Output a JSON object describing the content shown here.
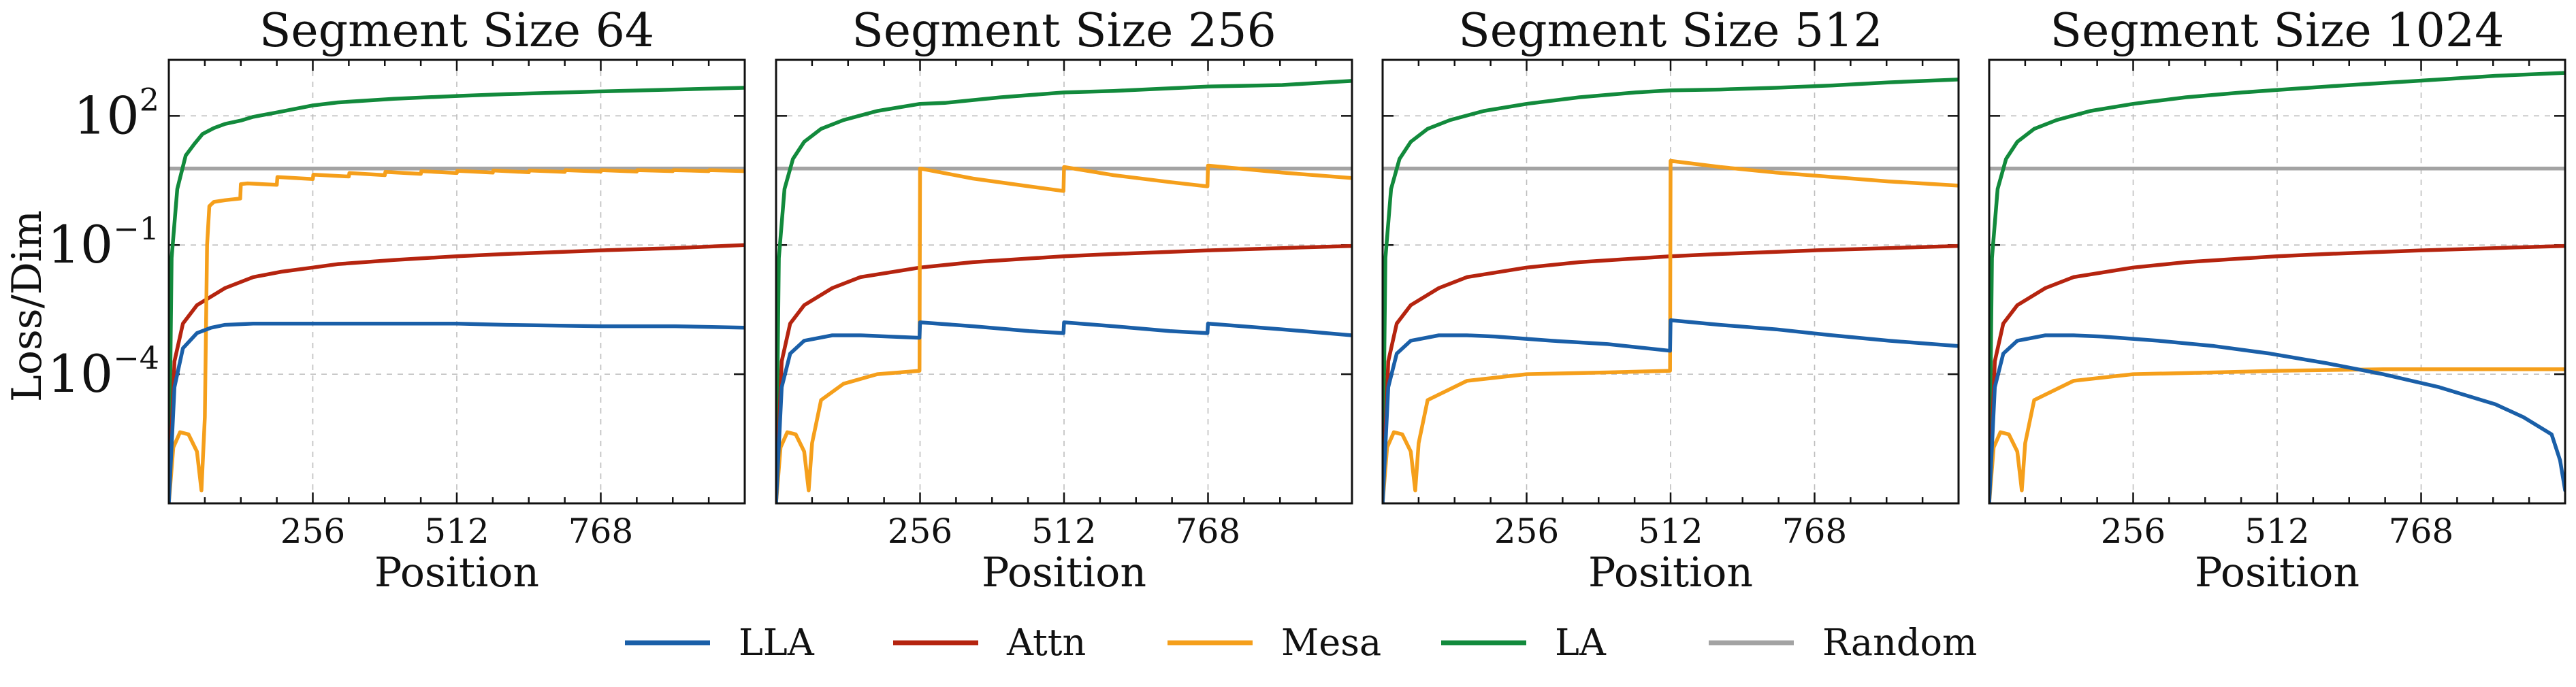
{
  "chart_data": [
    {
      "type": "line",
      "title": "Segment Size 64",
      "xlabel": "Position",
      "ylabel": "Loss/Dim",
      "yscale": "log",
      "xlim": [
        0,
        1024
      ],
      "ylim": [
        1e-07,
        2000
      ],
      "xticks": [
        256,
        512,
        768
      ],
      "xtick_labels": [
        "256",
        "512",
        "768"
      ],
      "yticks": [
        0.0001,
        0.1,
        100
      ],
      "ytick_labels": [
        {
          "base": "10",
          "exp": "−4"
        },
        {
          "base": "10",
          "exp": "−1"
        },
        {
          "base": "10",
          "exp": "2"
        }
      ],
      "grid": true,
      "series": [
        {
          "name": "LLA",
          "x": [
            0,
            10,
            25,
            50,
            75,
            100,
            150,
            256,
            400,
            512,
            600,
            768,
            900,
            1024
          ],
          "y": [
            1e-07,
            5e-05,
            0.0004,
            0.0009,
            0.0012,
            0.0014,
            0.0015,
            0.0015,
            0.0015,
            0.0015,
            0.0014,
            0.0013,
            0.0013,
            0.0012
          ]
        },
        {
          "name": "Attn",
          "x": [
            0,
            10,
            25,
            50,
            100,
            150,
            200,
            256,
            300,
            400,
            512,
            600,
            768,
            900,
            1024
          ],
          "y": [
            1e-07,
            0.0002,
            0.0015,
            0.004,
            0.01,
            0.018,
            0.024,
            0.03,
            0.036,
            0.045,
            0.055,
            0.062,
            0.075,
            0.085,
            0.1
          ]
        },
        {
          "name": "Mesa",
          "x": [
            0,
            8,
            20,
            35,
            50,
            58,
            64,
            68,
            72,
            80,
            100,
            127,
            128,
            140,
            192,
            193,
            256,
            257,
            320,
            321,
            384,
            385,
            448,
            449,
            512,
            513,
            576,
            577,
            640,
            641,
            704,
            705,
            768,
            769,
            832,
            833,
            896,
            897,
            960,
            961,
            1024
          ],
          "y": [
            1e-07,
            2e-06,
            4.5e-06,
            4e-06,
            1.6e-06,
            2e-07,
            1e-05,
            0.1,
            0.8,
            1.0,
            1.1,
            1.2,
            2.6,
            2.7,
            2.5,
            3.8,
            3.4,
            4.3,
            3.9,
            4.7,
            4.2,
            5.0,
            4.5,
            5.2,
            4.7,
            5.3,
            4.8,
            5.4,
            4.9,
            5.4,
            5.0,
            5.5,
            5.1,
            5.5,
            5.1,
            5.5,
            5.2,
            5.5,
            5.2,
            5.5,
            5.2
          ]
        },
        {
          "name": "LA",
          "x": [
            0,
            5,
            15,
            30,
            45,
            60,
            80,
            100,
            128,
            150,
            192,
            256,
            300,
            400,
            512,
            600,
            768,
            900,
            1024
          ],
          "y": [
            1e-07,
            0.05,
            2,
            12,
            22,
            38,
            52,
            65,
            78,
            95,
            120,
            175,
            205,
            250,
            290,
            320,
            370,
            410,
            450
          ]
        },
        {
          "name": "Random",
          "x": [
            0,
            1024
          ],
          "y": [
            6,
            6
          ]
        }
      ]
    },
    {
      "type": "line",
      "title": "Segment Size 256",
      "xlabel": "Position",
      "ylabel": "",
      "yscale": "log",
      "xlim": [
        0,
        1024
      ],
      "ylim": [
        1e-07,
        2000
      ],
      "xticks": [
        256,
        512,
        768
      ],
      "xtick_labels": [
        "256",
        "512",
        "768"
      ],
      "grid": true,
      "series": [
        {
          "name": "LLA",
          "x": [
            0,
            10,
            25,
            50,
            100,
            150,
            200,
            255,
            256,
            350,
            450,
            511,
            512,
            600,
            700,
            767,
            768,
            900,
            1024
          ],
          "y": [
            1e-07,
            5e-05,
            0.0003,
            0.0006,
            0.0008,
            0.0008,
            0.00075,
            0.0007,
            0.0016,
            0.0013,
            0.001,
            0.0009,
            0.0016,
            0.0013,
            0.001,
            0.0009,
            0.0015,
            0.0011,
            0.0008
          ]
        },
        {
          "name": "Attn",
          "x": [
            0,
            10,
            25,
            50,
            100,
            150,
            256,
            350,
            512,
            600,
            768,
            900,
            1024
          ],
          "y": [
            1e-07,
            0.0002,
            0.0015,
            0.004,
            0.01,
            0.018,
            0.03,
            0.04,
            0.055,
            0.062,
            0.075,
            0.085,
            0.095
          ]
        },
        {
          "name": "Mesa",
          "x": [
            0,
            8,
            20,
            35,
            50,
            58,
            64,
            80,
            120,
            180,
            255,
            256,
            350,
            450,
            511,
            512,
            600,
            700,
            767,
            768,
            900,
            1024
          ],
          "y": [
            1e-07,
            2e-06,
            4.5e-06,
            4e-06,
            1.6e-06,
            2e-07,
            2.5e-06,
            2.5e-05,
            6e-05,
            0.0001,
            0.00012,
            6,
            3.5,
            2.3,
            1.8,
            6.5,
            4.2,
            2.9,
            2.3,
            7,
            4.8,
            3.6
          ]
        },
        {
          "name": "LA",
          "x": [
            0,
            5,
            15,
            30,
            50,
            80,
            120,
            180,
            256,
            300,
            400,
            512,
            600,
            768,
            900,
            1024
          ],
          "y": [
            1e-07,
            0.05,
            2,
            10,
            25,
            50,
            80,
            130,
            190,
            200,
            270,
            350,
            380,
            480,
            520,
            650
          ]
        },
        {
          "name": "Random",
          "x": [
            0,
            1024
          ],
          "y": [
            6,
            6
          ]
        }
      ]
    },
    {
      "type": "line",
      "title": "Segment Size 512",
      "xlabel": "Position",
      "ylabel": "",
      "yscale": "log",
      "xlim": [
        0,
        1024
      ],
      "ylim": [
        1e-07,
        2000
      ],
      "xticks": [
        256,
        512,
        768
      ],
      "xtick_labels": [
        "256",
        "512",
        "768"
      ],
      "grid": true,
      "series": [
        {
          "name": "LLA",
          "x": [
            0,
            10,
            25,
            50,
            100,
            150,
            200,
            300,
            400,
            511,
            512,
            600,
            700,
            800,
            900,
            1024
          ],
          "y": [
            1e-07,
            5e-05,
            0.0003,
            0.0006,
            0.0008,
            0.0008,
            0.00075,
            0.0006,
            0.0005,
            0.00035,
            0.0018,
            0.0014,
            0.0011,
            0.0008,
            0.0006,
            0.00045
          ]
        },
        {
          "name": "Attn",
          "x": [
            0,
            10,
            25,
            50,
            100,
            150,
            256,
            350,
            512,
            600,
            768,
            900,
            1024
          ],
          "y": [
            1e-07,
            0.0002,
            0.0015,
            0.004,
            0.01,
            0.018,
            0.03,
            0.04,
            0.055,
            0.062,
            0.075,
            0.085,
            0.095
          ]
        },
        {
          "name": "Mesa",
          "x": [
            0,
            8,
            20,
            35,
            50,
            58,
            64,
            80,
            150,
            256,
            400,
            511,
            512,
            600,
            700,
            800,
            900,
            1024
          ],
          "y": [
            1e-07,
            2e-06,
            4.5e-06,
            4e-06,
            1.6e-06,
            2e-07,
            2.5e-06,
            2.5e-05,
            7e-05,
            0.0001,
            0.00011,
            0.00012,
            9,
            6.5,
            4.8,
            3.8,
            3.0,
            2.4
          ]
        },
        {
          "name": "LA",
          "x": [
            0,
            5,
            15,
            30,
            50,
            80,
            120,
            180,
            256,
            350,
            450,
            512,
            600,
            700,
            800,
            900,
            1024
          ],
          "y": [
            1e-07,
            0.05,
            2,
            10,
            25,
            50,
            80,
            130,
            190,
            270,
            350,
            390,
            410,
            450,
            510,
            600,
            700
          ]
        },
        {
          "name": "Random",
          "x": [
            0,
            1024
          ],
          "y": [
            6,
            6
          ]
        }
      ]
    },
    {
      "type": "line",
      "title": "Segment Size 1024",
      "xlabel": "Position",
      "ylabel": "",
      "yscale": "log",
      "xlim": [
        0,
        1024
      ],
      "ylim": [
        1e-07,
        2000
      ],
      "xticks": [
        256,
        512,
        768
      ],
      "xtick_labels": [
        "256",
        "512",
        "768"
      ],
      "grid": true,
      "series": [
        {
          "name": "LLA",
          "x": [
            0,
            10,
            25,
            50,
            100,
            150,
            200,
            300,
            400,
            500,
            600,
            700,
            800,
            900,
            950,
            1000,
            1015,
            1024
          ],
          "y": [
            1e-07,
            5e-05,
            0.0003,
            0.0006,
            0.0008,
            0.0008,
            0.00075,
            0.0006,
            0.00045,
            0.0003,
            0.00018,
            0.0001,
            5e-05,
            2e-05,
            1e-05,
            4e-06,
            1e-06,
            2e-07
          ]
        },
        {
          "name": "Attn",
          "x": [
            0,
            10,
            25,
            50,
            100,
            150,
            256,
            350,
            512,
            600,
            768,
            900,
            1024
          ],
          "y": [
            1e-07,
            0.0002,
            0.0015,
            0.004,
            0.01,
            0.018,
            0.03,
            0.04,
            0.055,
            0.062,
            0.075,
            0.085,
            0.095
          ]
        },
        {
          "name": "Mesa",
          "x": [
            0,
            8,
            20,
            35,
            50,
            58,
            64,
            80,
            150,
            256,
            400,
            512,
            700,
            900,
            1024
          ],
          "y": [
            1e-07,
            2e-06,
            4.5e-06,
            4e-06,
            1.6e-06,
            2e-07,
            2.5e-06,
            2.5e-05,
            7e-05,
            0.0001,
            0.00011,
            0.00012,
            0.00013,
            0.00013,
            0.00013
          ]
        },
        {
          "name": "LA",
          "x": [
            0,
            5,
            15,
            30,
            50,
            80,
            120,
            180,
            256,
            350,
            450,
            512,
            600,
            700,
            800,
            900,
            1024
          ],
          "y": [
            1e-07,
            0.05,
            2,
            10,
            25,
            50,
            80,
            130,
            190,
            270,
            350,
            400,
            480,
            580,
            700,
            850,
            1000
          ]
        },
        {
          "name": "Random",
          "x": [
            0,
            1024
          ],
          "y": [
            6,
            6
          ]
        }
      ]
    }
  ],
  "legend": {
    "placement": "bottom-center",
    "entries": [
      {
        "name": "LLA",
        "color": "#1a5fa8"
      },
      {
        "name": "Attn",
        "color": "#b5240f"
      },
      {
        "name": "Mesa",
        "color": "#f59f1b"
      },
      {
        "name": "LA",
        "color": "#128a3c"
      },
      {
        "name": "Random",
        "color": "#a3a3a3"
      }
    ]
  }
}
